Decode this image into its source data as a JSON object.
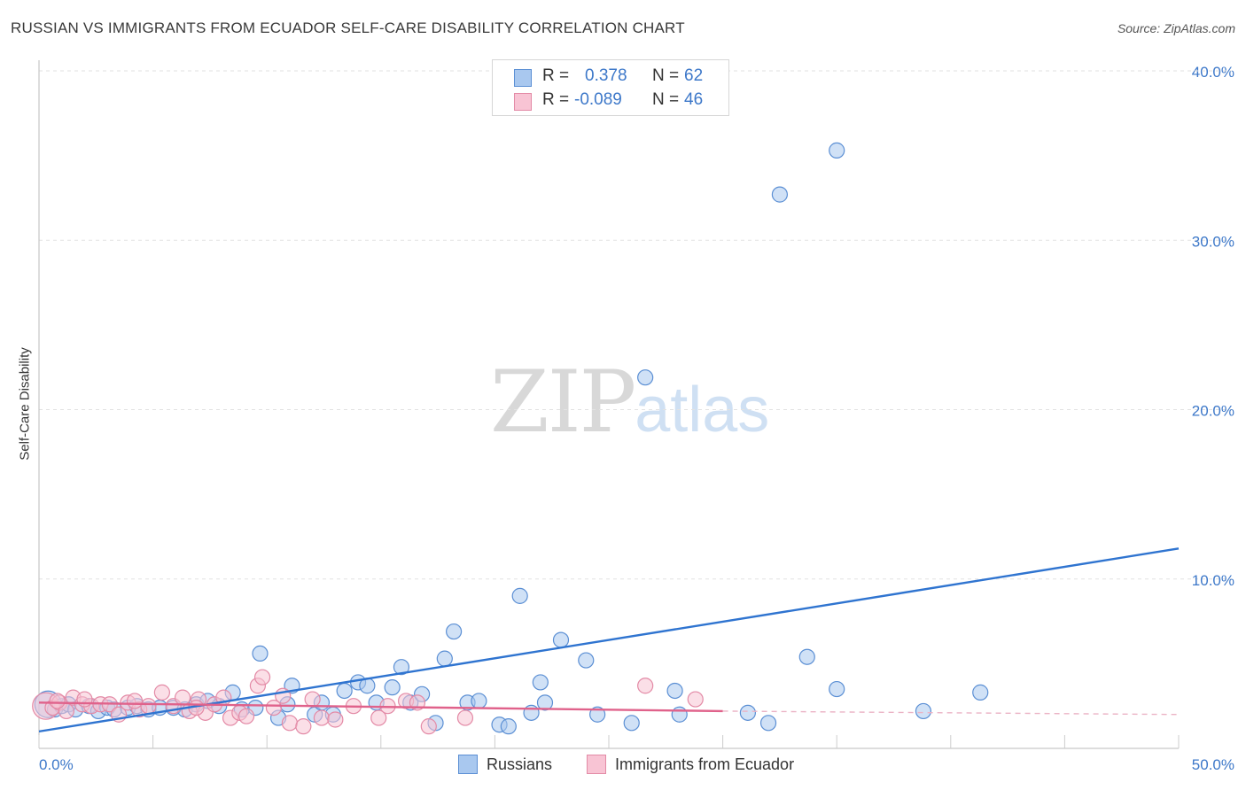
{
  "header": {
    "title": "RUSSIAN VS IMMIGRANTS FROM ECUADOR SELF-CARE DISABILITY CORRELATION CHART",
    "source": "Source: ZipAtlas.com"
  },
  "watermark": {
    "zip": "ZIP",
    "atlas": "atlas"
  },
  "legend": {
    "rows": [
      {
        "r_label": "R =",
        "r_value": "0.378",
        "n_label": "N =",
        "n_value": "62",
        "color": "#a9c8ef",
        "border": "#5b8fd4"
      },
      {
        "r_label": "R =",
        "r_value": "-0.089",
        "n_label": "N =",
        "n_value": "46",
        "color": "#f8c4d4",
        "border": "#e38aa6"
      }
    ]
  },
  "bottom_legend": [
    {
      "label": "Russians",
      "color": "#a9c8ef",
      "border": "#5b8fd4"
    },
    {
      "label": "Immigrants from Ecuador",
      "color": "#f8c4d4",
      "border": "#e38aa6"
    }
  ],
  "chart_data": {
    "type": "scatter",
    "title": "RUSSIAN VS IMMIGRANTS FROM ECUADOR SELF-CARE DISABILITY CORRELATION CHART",
    "xlabel": "",
    "ylabel": "Self-Care Disability",
    "xlim": [
      0,
      50
    ],
    "ylim": [
      0,
      40
    ],
    "x_ticks": [
      "0.0%",
      "50.0%"
    ],
    "y_ticks": [
      {
        "value": 10,
        "label": "10.0%"
      },
      {
        "value": 20,
        "label": "20.0%"
      },
      {
        "value": 30,
        "label": "30.0%"
      },
      {
        "value": 40,
        "label": "40.0%"
      }
    ],
    "grid": true,
    "series": [
      {
        "name": "Russians",
        "color": "#a9c8ef",
        "stroke": "#5b8fd4",
        "points": [
          {
            "x": 0.4,
            "y": 2.6,
            "big": true
          },
          {
            "x": 0.7,
            "y": 2.3
          },
          {
            "x": 1.0,
            "y": 2.5
          },
          {
            "x": 1.3,
            "y": 2.6
          },
          {
            "x": 1.6,
            "y": 2.3
          },
          {
            "x": 2.2,
            "y": 2.5
          },
          {
            "x": 2.6,
            "y": 2.2
          },
          {
            "x": 3.0,
            "y": 2.4
          },
          {
            "x": 3.3,
            "y": 2.3
          },
          {
            "x": 3.9,
            "y": 2.4
          },
          {
            "x": 4.3,
            "y": 2.5
          },
          {
            "x": 4.8,
            "y": 2.3
          },
          {
            "x": 5.3,
            "y": 2.4
          },
          {
            "x": 5.9,
            "y": 2.4
          },
          {
            "x": 6.4,
            "y": 2.3
          },
          {
            "x": 6.9,
            "y": 2.6
          },
          {
            "x": 7.4,
            "y": 2.8
          },
          {
            "x": 7.9,
            "y": 2.5
          },
          {
            "x": 8.5,
            "y": 3.3
          },
          {
            "x": 8.9,
            "y": 2.3
          },
          {
            "x": 9.5,
            "y": 2.4
          },
          {
            "x": 9.7,
            "y": 5.6
          },
          {
            "x": 10.5,
            "y": 1.8
          },
          {
            "x": 10.9,
            "y": 2.6
          },
          {
            "x": 11.1,
            "y": 3.7
          },
          {
            "x": 12.1,
            "y": 2.0
          },
          {
            "x": 12.4,
            "y": 2.7
          },
          {
            "x": 12.9,
            "y": 2.0
          },
          {
            "x": 13.4,
            "y": 3.4
          },
          {
            "x": 14.0,
            "y": 3.9
          },
          {
            "x": 14.4,
            "y": 3.7
          },
          {
            "x": 14.8,
            "y": 2.7
          },
          {
            "x": 15.5,
            "y": 3.6
          },
          {
            "x": 15.9,
            "y": 4.8
          },
          {
            "x": 16.3,
            "y": 2.7
          },
          {
            "x": 16.8,
            "y": 3.2
          },
          {
            "x": 17.4,
            "y": 1.5
          },
          {
            "x": 17.8,
            "y": 5.3
          },
          {
            "x": 18.2,
            "y": 6.9
          },
          {
            "x": 18.8,
            "y": 2.7
          },
          {
            "x": 19.3,
            "y": 2.8
          },
          {
            "x": 20.2,
            "y": 1.4
          },
          {
            "x": 20.6,
            "y": 1.3
          },
          {
            "x": 21.1,
            "y": 9.0
          },
          {
            "x": 21.6,
            "y": 2.1
          },
          {
            "x": 22.0,
            "y": 3.9
          },
          {
            "x": 22.2,
            "y": 2.7
          },
          {
            "x": 22.9,
            "y": 6.4
          },
          {
            "x": 24.0,
            "y": 5.2
          },
          {
            "x": 24.5,
            "y": 2.0
          },
          {
            "x": 26.0,
            "y": 1.5
          },
          {
            "x": 26.6,
            "y": 21.9
          },
          {
            "x": 27.9,
            "y": 3.4
          },
          {
            "x": 28.1,
            "y": 2.0
          },
          {
            "x": 31.1,
            "y": 2.1
          },
          {
            "x": 32.0,
            "y": 1.5
          },
          {
            "x": 32.5,
            "y": 32.7
          },
          {
            "x": 33.7,
            "y": 5.4
          },
          {
            "x": 35.0,
            "y": 35.3
          },
          {
            "x": 35.0,
            "y": 3.5
          },
          {
            "x": 38.8,
            "y": 2.2
          },
          {
            "x": 41.3,
            "y": 3.3
          }
        ],
        "trend": {
          "x1": 0,
          "y1": 1.0,
          "x2": 50,
          "y2": 11.8
        }
      },
      {
        "name": "Immigrants from Ecuador",
        "color": "#f8c4d4",
        "stroke": "#e38aa6",
        "points": [
          {
            "x": 0.3,
            "y": 2.5,
            "big": true
          },
          {
            "x": 0.6,
            "y": 2.4
          },
          {
            "x": 0.9,
            "y": 2.7
          },
          {
            "x": 1.2,
            "y": 2.2
          },
          {
            "x": 1.5,
            "y": 3.0
          },
          {
            "x": 1.9,
            "y": 2.6
          },
          {
            "x": 2.3,
            "y": 2.5
          },
          {
            "x": 2.7,
            "y": 2.6
          },
          {
            "x": 3.1,
            "y": 2.6
          },
          {
            "x": 3.5,
            "y": 2.0
          },
          {
            "x": 3.9,
            "y": 2.7
          },
          {
            "x": 4.4,
            "y": 2.3
          },
          {
            "x": 4.8,
            "y": 2.5
          },
          {
            "x": 5.4,
            "y": 3.3
          },
          {
            "x": 5.9,
            "y": 2.5
          },
          {
            "x": 6.3,
            "y": 3.0
          },
          {
            "x": 6.6,
            "y": 2.2
          },
          {
            "x": 7.0,
            "y": 2.9
          },
          {
            "x": 7.3,
            "y": 2.1
          },
          {
            "x": 7.7,
            "y": 2.6
          },
          {
            "x": 8.1,
            "y": 3.0
          },
          {
            "x": 8.4,
            "y": 1.8
          },
          {
            "x": 8.8,
            "y": 2.1
          },
          {
            "x": 9.1,
            "y": 1.9
          },
          {
            "x": 9.6,
            "y": 3.7
          },
          {
            "x": 9.8,
            "y": 4.2
          },
          {
            "x": 10.3,
            "y": 2.4
          },
          {
            "x": 10.7,
            "y": 3.1
          },
          {
            "x": 11.0,
            "y": 1.5
          },
          {
            "x": 11.6,
            "y": 1.3
          },
          {
            "x": 12.4,
            "y": 1.8
          },
          {
            "x": 13.0,
            "y": 1.7
          },
          {
            "x": 13.8,
            "y": 2.5
          },
          {
            "x": 14.9,
            "y": 1.8
          },
          {
            "x": 15.3,
            "y": 2.5
          },
          {
            "x": 16.1,
            "y": 2.8
          },
          {
            "x": 16.6,
            "y": 2.7
          },
          {
            "x": 17.1,
            "y": 1.3
          },
          {
            "x": 18.7,
            "y": 1.8
          },
          {
            "x": 26.6,
            "y": 3.7
          },
          {
            "x": 28.8,
            "y": 2.9
          },
          {
            "x": 0.8,
            "y": 2.8
          },
          {
            "x": 2.0,
            "y": 2.9
          },
          {
            "x": 4.2,
            "y": 2.8
          },
          {
            "x": 6.9,
            "y": 2.4
          },
          {
            "x": 12.0,
            "y": 2.9
          }
        ],
        "trend": {
          "x1": 0,
          "y1": 2.7,
          "x2": 30,
          "y2": 2.2
        },
        "trend_dashed": {
          "x1": 30,
          "y1": 2.2,
          "x2": 50,
          "y2": 2.0
        }
      }
    ]
  }
}
